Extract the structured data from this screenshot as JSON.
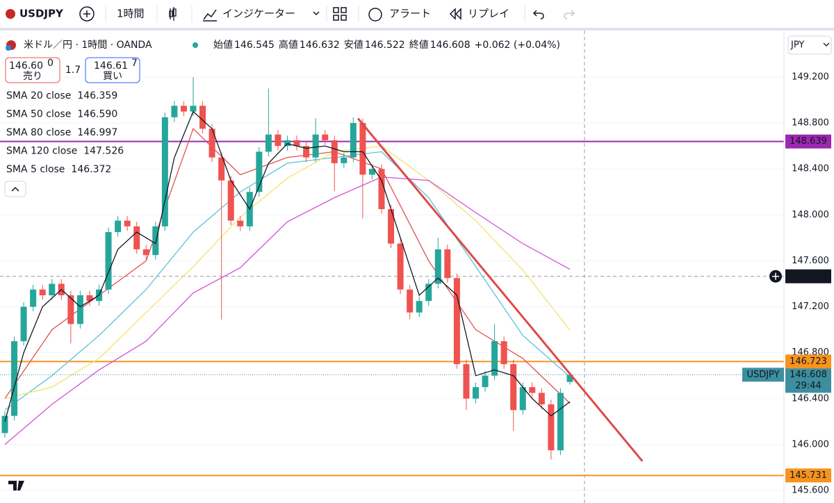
{
  "toolbar": {
    "symbol": "USDJPY",
    "interval": "1時間",
    "indicators": "インジケーター",
    "alert": "アラート",
    "replay": "リプレイ"
  },
  "legend": {
    "title": "米ドル／円 · 1時間 · OANDA",
    "open_label": "始値",
    "high_label": "高値",
    "low_label": "安値",
    "close_label": "終値",
    "change": "+0.062 (+0.04%)"
  },
  "trade": {
    "sell_price": "146.60",
    "sell_sup": "0",
    "sell_label": "売り",
    "spread": "1.7",
    "buy_price": "146.61",
    "buy_sup": "7",
    "buy_label": "買い"
  },
  "chart_data": {
    "type": "candlestick",
    "currency": "JPY",
    "ylim": [
      145.491,
      149.605
    ],
    "yticks": [
      {
        "value": 145.6,
        "label": "145.600"
      },
      {
        "value": 146.0,
        "label": "146.000"
      },
      {
        "value": 146.4,
        "label": "146.400"
      },
      {
        "value": 146.8,
        "label": "146.800"
      },
      {
        "value": 147.2,
        "label": "147.200"
      },
      {
        "value": 147.6,
        "label": "147.600"
      },
      {
        "value": 148.0,
        "label": "148.000"
      },
      {
        "value": 148.4,
        "label": "148.400"
      },
      {
        "value": 148.8,
        "label": "148.800"
      },
      {
        "value": 149.2,
        "label": "149.200"
      }
    ],
    "grid": true,
    "up_color": "#26a69a",
    "down_color": "#ef5350",
    "ohlc": [
      [
        146.1,
        146.29,
        146.06,
        146.25
      ],
      [
        146.25,
        146.94,
        146.21,
        146.9
      ],
      [
        146.9,
        147.24,
        146.86,
        147.2
      ],
      [
        147.2,
        147.39,
        147.16,
        147.35
      ],
      [
        147.35,
        147.39,
        147.26,
        147.3
      ],
      [
        147.3,
        147.44,
        147.26,
        147.4
      ],
      [
        147.4,
        147.44,
        147.26,
        147.3
      ],
      [
        147.3,
        147.34,
        146.88,
        147.05
      ],
      [
        147.05,
        147.34,
        147.01,
        147.3
      ],
      [
        147.3,
        147.34,
        147.21,
        147.25
      ],
      [
        147.25,
        147.39,
        147.21,
        147.35
      ],
      [
        147.35,
        147.89,
        147.31,
        147.85
      ],
      [
        147.85,
        147.99,
        147.81,
        147.95
      ],
      [
        147.95,
        147.99,
        147.86,
        147.9
      ],
      [
        147.9,
        147.94,
        147.66,
        147.7
      ],
      [
        147.7,
        147.74,
        147.61,
        147.65
      ],
      [
        147.65,
        147.94,
        147.61,
        147.9
      ],
      [
        147.9,
        148.89,
        147.86,
        148.85
      ],
      [
        148.85,
        148.99,
        148.81,
        148.95
      ],
      [
        148.95,
        148.99,
        148.86,
        148.9
      ],
      [
        148.9,
        149.2,
        148.86,
        148.95
      ],
      [
        148.95,
        148.99,
        148.71,
        148.75
      ],
      [
        148.75,
        148.79,
        148.46,
        148.5
      ],
      [
        148.5,
        148.54,
        147.09,
        148.3
      ],
      [
        148.3,
        148.34,
        147.91,
        147.95
      ],
      [
        147.95,
        147.99,
        147.86,
        147.9
      ],
      [
        147.9,
        148.24,
        147.86,
        148.2
      ],
      [
        148.2,
        148.59,
        148.16,
        148.55
      ],
      [
        148.55,
        149.1,
        148.51,
        148.7
      ],
      [
        148.7,
        148.74,
        148.56,
        148.6
      ],
      [
        148.6,
        148.69,
        148.56,
        148.65
      ],
      [
        148.65,
        148.69,
        148.56,
        148.6
      ],
      [
        148.6,
        148.64,
        148.46,
        148.5
      ],
      [
        148.5,
        148.84,
        148.46,
        148.7
      ],
      [
        148.7,
        148.74,
        148.61,
        148.65
      ],
      [
        148.65,
        148.69,
        148.21,
        148.45
      ],
      [
        148.45,
        148.54,
        148.41,
        148.5
      ],
      [
        148.5,
        148.85,
        148.46,
        148.8
      ],
      [
        148.8,
        148.84,
        147.97,
        148.35
      ],
      [
        148.35,
        148.44,
        148.31,
        148.4
      ],
      [
        148.4,
        148.44,
        148.01,
        148.05
      ],
      [
        148.05,
        148.09,
        147.71,
        147.75
      ],
      [
        147.75,
        147.79,
        147.31,
        147.35
      ],
      [
        147.35,
        147.39,
        147.09,
        147.15
      ],
      [
        147.15,
        147.29,
        147.11,
        147.25
      ],
      [
        147.25,
        147.44,
        147.21,
        147.4
      ],
      [
        147.4,
        147.8,
        147.36,
        147.7
      ],
      [
        147.7,
        147.74,
        147.41,
        147.45
      ],
      [
        147.45,
        147.49,
        146.66,
        146.7
      ],
      [
        146.7,
        146.74,
        146.3,
        146.4
      ],
      [
        146.4,
        146.54,
        146.36,
        146.5
      ],
      [
        146.5,
        146.64,
        146.46,
        146.6
      ],
      [
        146.6,
        147.05,
        146.56,
        146.9
      ],
      [
        146.9,
        146.94,
        146.66,
        146.7
      ],
      [
        146.7,
        146.74,
        146.12,
        146.3
      ],
      [
        146.3,
        146.54,
        146.26,
        146.5
      ],
      [
        146.5,
        146.54,
        146.41,
        146.45
      ],
      [
        146.45,
        146.49,
        146.31,
        146.35
      ],
      [
        146.35,
        146.39,
        145.87,
        145.95
      ],
      [
        145.95,
        146.49,
        145.91,
        146.45
      ],
      [
        146.545,
        146.632,
        146.522,
        146.608
      ]
    ],
    "series": [
      {
        "name": "SMA 20 close",
        "color": "#e05050",
        "x": [
          0,
          5,
          10,
          15,
          20,
          25,
          30,
          35,
          40,
          45,
          50,
          55,
          60
        ],
        "values": [
          146.4,
          147.0,
          147.3,
          147.6,
          148.75,
          148.35,
          148.5,
          148.55,
          148.4,
          147.6,
          147.0,
          146.75,
          146.359
        ]
      },
      {
        "name": "SMA 50 close",
        "color": "#5cc0da",
        "x": [
          0,
          5,
          10,
          15,
          20,
          25,
          30,
          35,
          40,
          45,
          50,
          55,
          60
        ],
        "values": [
          146.3,
          146.6,
          146.95,
          147.35,
          147.85,
          148.2,
          148.45,
          148.5,
          148.55,
          148.15,
          147.55,
          146.95,
          146.59
        ],
        "last_label": "146.590"
      },
      {
        "name": "SMA 80 close",
        "color": "#f3e26a",
        "x": [
          0,
          5,
          10,
          15,
          20,
          25,
          30,
          35,
          40,
          45,
          50,
          55,
          60
        ],
        "values": [
          146.4,
          146.5,
          146.75,
          147.15,
          147.55,
          147.98,
          148.32,
          148.55,
          148.6,
          148.3,
          147.95,
          147.52,
          146.997
        ]
      },
      {
        "name": "SMA 120 close",
        "color": "#d64fd6",
        "x": [
          0,
          5,
          10,
          15,
          20,
          25,
          30,
          35,
          40,
          45,
          50,
          55,
          60
        ],
        "values": [
          146.0,
          146.35,
          146.65,
          146.9,
          147.32,
          147.54,
          147.94,
          148.15,
          148.33,
          148.3,
          148.02,
          147.75,
          147.526
        ]
      },
      {
        "name": "SMA 5 close",
        "color": "#131722",
        "x": [
          0,
          2,
          4,
          6,
          8,
          10,
          12,
          14,
          16,
          18,
          20,
          22,
          24,
          26,
          28,
          30,
          32,
          34,
          36,
          38,
          40,
          42,
          44,
          46,
          48,
          50,
          52,
          54,
          56,
          58,
          60
        ],
        "values": [
          146.2,
          146.8,
          147.2,
          147.35,
          147.2,
          147.3,
          147.7,
          147.85,
          147.75,
          148.5,
          148.9,
          148.75,
          148.3,
          148.05,
          148.45,
          148.62,
          148.58,
          148.6,
          148.55,
          148.55,
          148.3,
          147.8,
          147.3,
          147.45,
          147.3,
          146.6,
          146.65,
          146.6,
          146.4,
          146.25,
          146.372
        ]
      }
    ],
    "trendline": {
      "color": "#e04848",
      "x": [
        37.5,
        67.7
      ],
      "values": [
        148.84,
        145.855
      ]
    },
    "levels": [
      {
        "value": 148.639,
        "color": "#9c27b0"
      },
      {
        "value": 146.723,
        "color": "#f7931e"
      },
      {
        "value": 145.731,
        "color": "#f7931e"
      }
    ],
    "crosshair": {
      "x": 61.55,
      "y": 147.465
    },
    "last_price": {
      "name": "USDJPY",
      "countdown": "29:44",
      "color": "#3d8fa0"
    }
  }
}
